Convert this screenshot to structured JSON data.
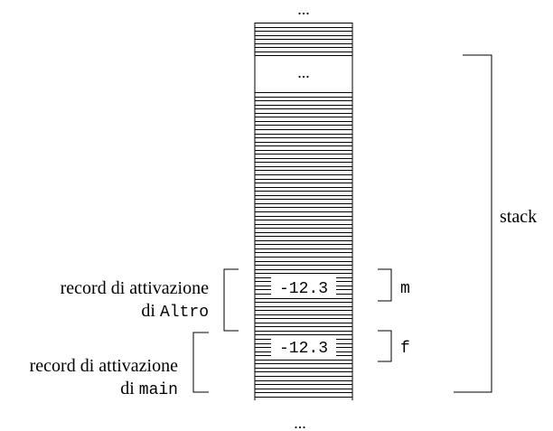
{
  "labels": {
    "dots_top": "...",
    "dots_inner": "...",
    "dots_bottom": "...",
    "stack": "stack"
  },
  "cells": [
    {
      "value": "-12.3",
      "var": "m"
    },
    {
      "value": "-12.3",
      "var": "f"
    }
  ],
  "records": [
    {
      "line1": "record di attivazione",
      "prefix": "di ",
      "func": "Altro"
    },
    {
      "line1": "record di attivazione",
      "prefix": "di ",
      "func": "main"
    }
  ]
}
